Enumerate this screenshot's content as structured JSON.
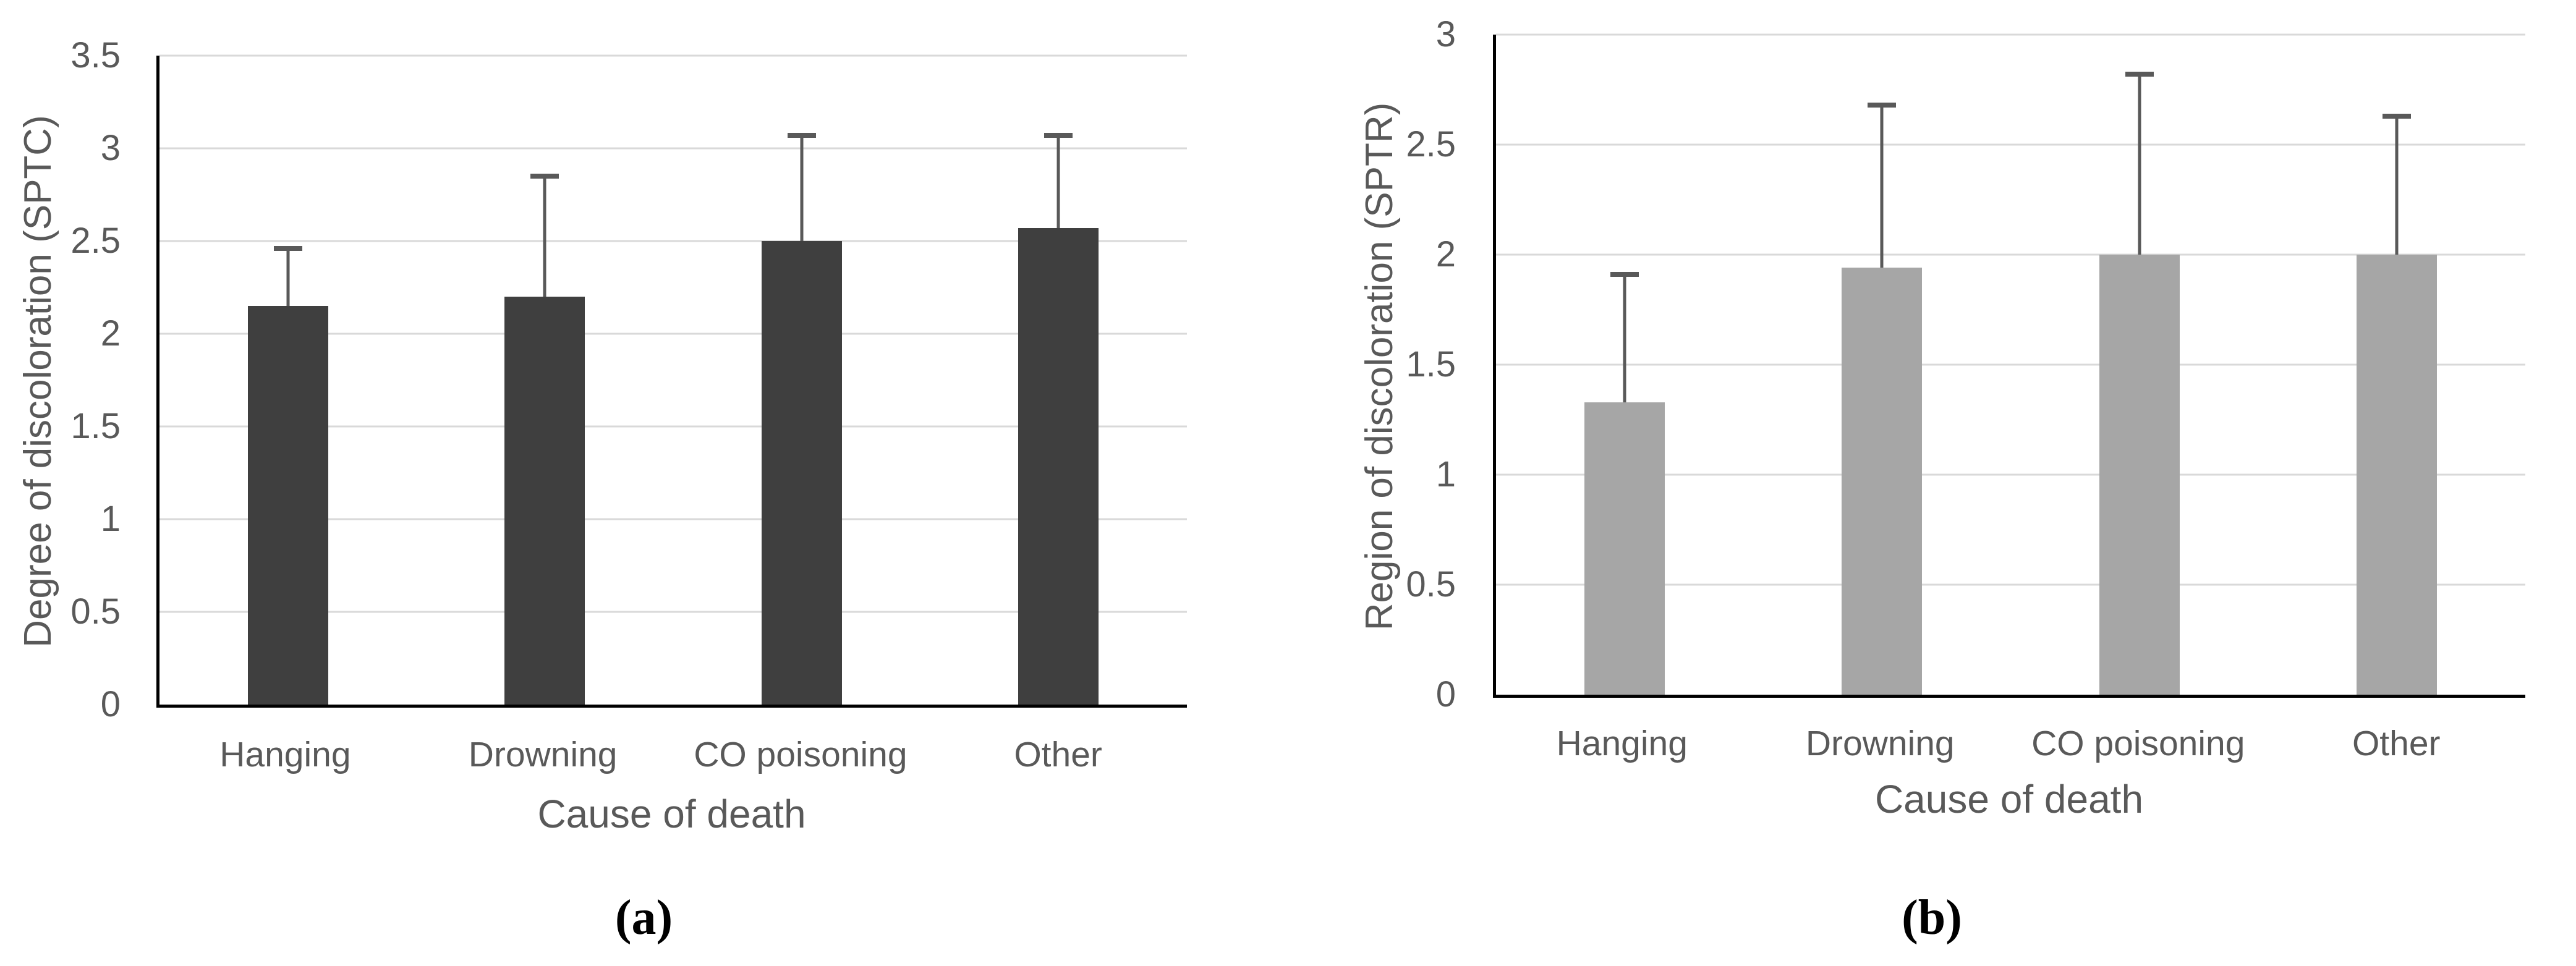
{
  "figure": {
    "description_colors": {
      "grid": "#d9d9d9",
      "axis": "#000000",
      "text": "#595959",
      "error_bar": "#595959"
    }
  },
  "chart_data": [
    {
      "id": "a",
      "type": "bar",
      "title": "",
      "categories": [
        "Hanging",
        "Drowning",
        "CO poisoning",
        "Other"
      ],
      "values": [
        2.15,
        2.2,
        2.5,
        2.57
      ],
      "error_plus": [
        0.31,
        0.65,
        0.57,
        0.5
      ],
      "xlabel": "Cause of death",
      "ylabel": "Degree of discoloration (SPTC)",
      "ylim": [
        0,
        3.5
      ],
      "yticks": [
        0,
        0.5,
        1,
        1.5,
        2,
        2.5,
        3,
        3.5
      ],
      "ytick_labels": [
        "0",
        "0.5",
        "1",
        "1.5",
        "2",
        "2.5",
        "3",
        "3.5"
      ],
      "grid": true,
      "legend": false,
      "caption": "(a)",
      "colors": {
        "bar": "#3f3f3f",
        "grid": "#d9d9d9",
        "text": "#595959",
        "error": "#595959"
      }
    },
    {
      "id": "b",
      "type": "bar",
      "title": "",
      "categories": [
        "Hanging",
        "Drowning",
        "CO poisoning",
        "Other"
      ],
      "values": [
        1.33,
        1.94,
        2.0,
        2.0
      ],
      "error_plus": [
        0.58,
        0.74,
        0.82,
        0.63
      ],
      "xlabel": "Cause of death",
      "ylabel": "Region of discoloration (SPTR)",
      "ylim": [
        0,
        3
      ],
      "yticks": [
        0,
        0.5,
        1,
        1.5,
        2,
        2.5,
        3
      ],
      "ytick_labels": [
        "0",
        "0.5",
        "1",
        "1.5",
        "2",
        "2.5",
        "3"
      ],
      "grid": true,
      "legend": false,
      "caption": "(b)",
      "colors": {
        "bar": "#a6a6a6",
        "grid": "#d9d9d9",
        "text": "#595959",
        "error": "#595959"
      }
    }
  ]
}
